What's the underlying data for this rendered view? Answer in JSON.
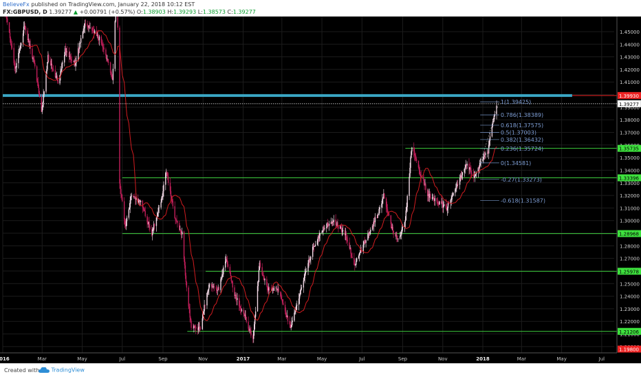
{
  "header": {
    "author": "BelieveFx",
    "published_text": "published on TradingView.com, January 22, 2018 10:12 EST",
    "symbol": "FX:GBPUSD, D",
    "last": "1.39277",
    "change_arrow": "▲",
    "change": "+0.00791 (+0.57%)",
    "o_label": "O:",
    "o_value": "1.38903",
    "h_label": "H:",
    "h_value": "1.39293",
    "l_label": "L:",
    "l_value": "1.38573",
    "c_label": "C:",
    "c_value": "1.39277"
  },
  "footer": {
    "created_with": "Created with",
    "brand": "TradingView"
  },
  "colors": {
    "background": "#000000",
    "bull_candle": "#f3d9e6",
    "bear_candle": "#c21e5a",
    "ma_line": "#d11c20",
    "support_line": "#3ecf3e",
    "resistance_band": "#3aa6c4",
    "fib_text": "#7f9fd6",
    "label_green": "#3ee23e",
    "label_red": "#ee2222"
  },
  "chart_data": {
    "type": "candlestick",
    "title": "",
    "xlabel": "",
    "ylabel": "",
    "ylim": [
      1.195,
      1.462
    ],
    "xlim": [
      "2016-01-01",
      "2018-07-20"
    ],
    "x_ticks": [
      {
        "date": "2016-01-01",
        "label": "2016"
      },
      {
        "date": "2016-03-01",
        "label": "Mar"
      },
      {
        "date": "2016-05-01",
        "label": "May"
      },
      {
        "date": "2016-07-01",
        "label": "Jul"
      },
      {
        "date": "2016-09-01",
        "label": "Sep"
      },
      {
        "date": "2016-11-01",
        "label": "Nov"
      },
      {
        "date": "2017-01-01",
        "label": "2017"
      },
      {
        "date": "2017-03-01",
        "label": "Mar"
      },
      {
        "date": "2017-05-01",
        "label": "May"
      },
      {
        "date": "2017-07-01",
        "label": "Jul"
      },
      {
        "date": "2017-09-01",
        "label": "Sep"
      },
      {
        "date": "2017-11-01",
        "label": "Nov"
      },
      {
        "date": "2018-01-01",
        "label": "2018"
      },
      {
        "date": "2018-03-01",
        "label": "Mar"
      },
      {
        "date": "2018-05-01",
        "label": "May"
      },
      {
        "date": "2018-07-01",
        "label": "Jul"
      }
    ],
    "y_ticks": [
      "1.45000",
      "1.44000",
      "1.43000",
      "1.42000",
      "1.41000",
      "1.40000",
      "1.39000",
      "1.38000",
      "1.37000",
      "1.36000",
      "1.35000",
      "1.34000",
      "1.33000",
      "1.32000",
      "1.31000",
      "1.30000",
      "1.29000",
      "1.28000",
      "1.27000",
      "1.26000",
      "1.25000",
      "1.24000",
      "1.23000",
      "1.22000",
      "1.21000",
      "1.20000"
    ],
    "price_path": [
      [
        "2016-01-04",
        1.47
      ],
      [
        "2016-01-20",
        1.42
      ],
      [
        "2016-02-03",
        1.455
      ],
      [
        "2016-02-20",
        1.42
      ],
      [
        "2016-02-29",
        1.385
      ],
      [
        "2016-03-10",
        1.43
      ],
      [
        "2016-03-25",
        1.41
      ],
      [
        "2016-04-05",
        1.435
      ],
      [
        "2016-04-20",
        1.425
      ],
      [
        "2016-05-05",
        1.455
      ],
      [
        "2016-05-20",
        1.45
      ],
      [
        "2016-06-01",
        1.44
      ],
      [
        "2016-06-10",
        1.425
      ],
      [
        "2016-06-16",
        1.41
      ],
      [
        "2016-06-23",
        1.495
      ],
      [
        "2016-06-27",
        1.33
      ],
      [
        "2016-07-06",
        1.295
      ],
      [
        "2016-07-15",
        1.32
      ],
      [
        "2016-07-29",
        1.315
      ],
      [
        "2016-08-15",
        1.29
      ],
      [
        "2016-08-31",
        1.32
      ],
      [
        "2016-09-06",
        1.34
      ],
      [
        "2016-09-20",
        1.3
      ],
      [
        "2016-09-30",
        1.29
      ],
      [
        "2016-10-07",
        1.245
      ],
      [
        "2016-10-14",
        1.215
      ],
      [
        "2016-10-28",
        1.215
      ],
      [
        "2016-11-10",
        1.25
      ],
      [
        "2016-11-25",
        1.245
      ],
      [
        "2016-12-06",
        1.27
      ],
      [
        "2016-12-20",
        1.24
      ],
      [
        "2017-01-03",
        1.225
      ],
      [
        "2017-01-16",
        1.205
      ],
      [
        "2017-01-26",
        1.265
      ],
      [
        "2017-02-08",
        1.245
      ],
      [
        "2017-02-24",
        1.245
      ],
      [
        "2017-03-14",
        1.215
      ],
      [
        "2017-03-30",
        1.245
      ],
      [
        "2017-04-18",
        1.28
      ],
      [
        "2017-05-05",
        1.295
      ],
      [
        "2017-05-18",
        1.3
      ],
      [
        "2017-06-05",
        1.29
      ],
      [
        "2017-06-20",
        1.265
      ],
      [
        "2017-07-07",
        1.285
      ],
      [
        "2017-07-25",
        1.305
      ],
      [
        "2017-08-03",
        1.32
      ],
      [
        "2017-08-15",
        1.295
      ],
      [
        "2017-08-25",
        1.285
      ],
      [
        "2017-09-05",
        1.3
      ],
      [
        "2017-09-15",
        1.36
      ],
      [
        "2017-09-26",
        1.34
      ],
      [
        "2017-10-10",
        1.32
      ],
      [
        "2017-10-25",
        1.315
      ],
      [
        "2017-11-07",
        1.31
      ],
      [
        "2017-11-25",
        1.33
      ],
      [
        "2017-12-06",
        1.345
      ],
      [
        "2017-12-20",
        1.335
      ],
      [
        "2018-01-02",
        1.35
      ],
      [
        "2018-01-09",
        1.355
      ],
      [
        "2018-01-15",
        1.375
      ],
      [
        "2018-01-22",
        1.3928
      ]
    ],
    "last_price": 1.39277,
    "horizontal_levels": [
      {
        "kind": "resistance",
        "value": 1.3993,
        "label": "1.39930",
        "from": "2016-01-01"
      },
      {
        "kind": "support",
        "value": 1.35735,
        "label": "1.35735",
        "from": "2017-09-05"
      },
      {
        "kind": "support",
        "value": 1.33396,
        "label": "1.33396",
        "from": "2016-07-01"
      },
      {
        "kind": "support",
        "value": 1.28968,
        "label": "1.28968",
        "from": "2016-07-01"
      },
      {
        "kind": "support",
        "value": 1.25978,
        "label": "1.25978",
        "from": "2016-11-05"
      },
      {
        "kind": "support",
        "value": 1.21206,
        "label": "1.21206",
        "from": "2016-10-08"
      }
    ],
    "fibonacci": {
      "from_date": "2017-12-28",
      "to_date": "2018-01-26",
      "levels": [
        {
          "ratio": "1",
          "value": 1.39425,
          "label": "1(1.39425)"
        },
        {
          "ratio": "0.786",
          "value": 1.38389,
          "label": "0.786(1.38389)"
        },
        {
          "ratio": "0.618",
          "value": 1.37575,
          "label": "0.618(1.37575)"
        },
        {
          "ratio": "0.5",
          "value": 1.37003,
          "label": "0.5(1.37003)"
        },
        {
          "ratio": "0.382",
          "value": 1.36432,
          "label": "0.382(1.36432)"
        },
        {
          "ratio": "0.236",
          "value": 1.35724,
          "label": "0.236(1.35724)"
        },
        {
          "ratio": "0",
          "value": 1.34581,
          "label": "0(1.34581)"
        },
        {
          "ratio": "-0.27",
          "value": 1.33273,
          "label": "-0.27(1.33273)"
        },
        {
          "ratio": "-0.618",
          "value": 1.31587,
          "label": "-0.618(1.31587)"
        }
      ]
    },
    "price_labels": [
      {
        "value": 1.3993,
        "text": "1.39930",
        "style": "red"
      },
      {
        "value": 1.39277,
        "text": "1.39277",
        "style": "white"
      },
      {
        "value": 1.35735,
        "text": "1.35735",
        "style": "green"
      },
      {
        "value": 1.33396,
        "text": "1.33396",
        "style": "green"
      },
      {
        "value": 1.28968,
        "text": "1.28968",
        "style": "green"
      },
      {
        "value": 1.25978,
        "text": "1.25978",
        "style": "green"
      },
      {
        "value": 1.21206,
        "text": "1.21206",
        "style": "green"
      },
      {
        "value": 1.198,
        "text": "1.19800",
        "style": "red"
      }
    ]
  }
}
